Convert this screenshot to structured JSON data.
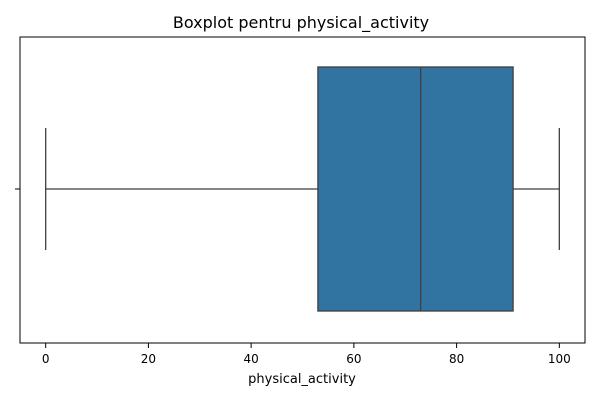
{
  "chart_data": {
    "type": "boxplot",
    "title": "Boxplot pentru physical_activity",
    "xlabel": "physical_activity",
    "ylabel": "",
    "xlim": [
      -5,
      105
    ],
    "x_ticks": [
      0,
      20,
      40,
      60,
      80,
      100
    ],
    "x_tick_labels": [
      "0",
      "20",
      "40",
      "60",
      "80",
      "100"
    ],
    "orientation": "horizontal",
    "grid": false,
    "legend": "none",
    "box": {
      "min": 0,
      "q1": 53,
      "median": 73,
      "q3": 91,
      "max": 100
    },
    "colors": {
      "box_fill": "#3274a1",
      "line": "#3f3f3f",
      "axis": "#000000"
    }
  }
}
